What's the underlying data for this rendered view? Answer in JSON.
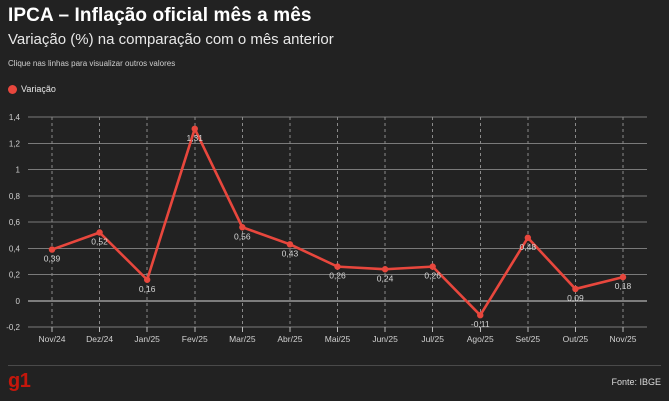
{
  "header": {
    "title": "IPCA – Inflação oficial mês a mês",
    "subtitle": "Variação (%) na comparação com o mês anterior",
    "hint": "Clique nas linhas para visualizar outros valores"
  },
  "legend": {
    "label": "Variação",
    "color": "#e8473d"
  },
  "footer": {
    "logo": "g1",
    "logo_color": "#c4170c",
    "source": "Fonte: IBGE"
  },
  "chart_data": {
    "type": "line",
    "title": "IPCA – Inflação oficial mês a mês",
    "subtitle": "Variação (%) na comparação com o mês anterior",
    "categories": [
      "Nov/24",
      "Dez/24",
      "Jan/25",
      "Fev/25",
      "Mar/25",
      "Abr/25",
      "Mai/25",
      "Jun/25",
      "Jul/25",
      "Ago/25",
      "Set/25",
      "Out/25",
      "Nov/25"
    ],
    "series": [
      {
        "name": "Variação",
        "color": "#e8473d",
        "values": [
          0.39,
          0.52,
          0.16,
          1.31,
          0.56,
          0.43,
          0.26,
          0.24,
          0.26,
          -0.11,
          0.48,
          0.09,
          0.18
        ],
        "labels": [
          "0,39",
          "0,52",
          "0,16",
          "1,31",
          "0,56",
          "0,43",
          "0,26",
          "0,24",
          "0,26",
          "-0,11",
          "0,48",
          "0,09",
          "0,18"
        ]
      }
    ],
    "y_ticks": [
      -0.2,
      0,
      0.2,
      0.4,
      0.6,
      0.8,
      1,
      1.2,
      1.4
    ],
    "y_tick_labels": [
      "-0,2",
      "0",
      "0,2",
      "0,4",
      "0,6",
      "0,8",
      "1",
      "1,2",
      "1,4"
    ],
    "ylim": [
      -0.2,
      1.4
    ],
    "grid": true,
    "legend_position": "top-left"
  }
}
